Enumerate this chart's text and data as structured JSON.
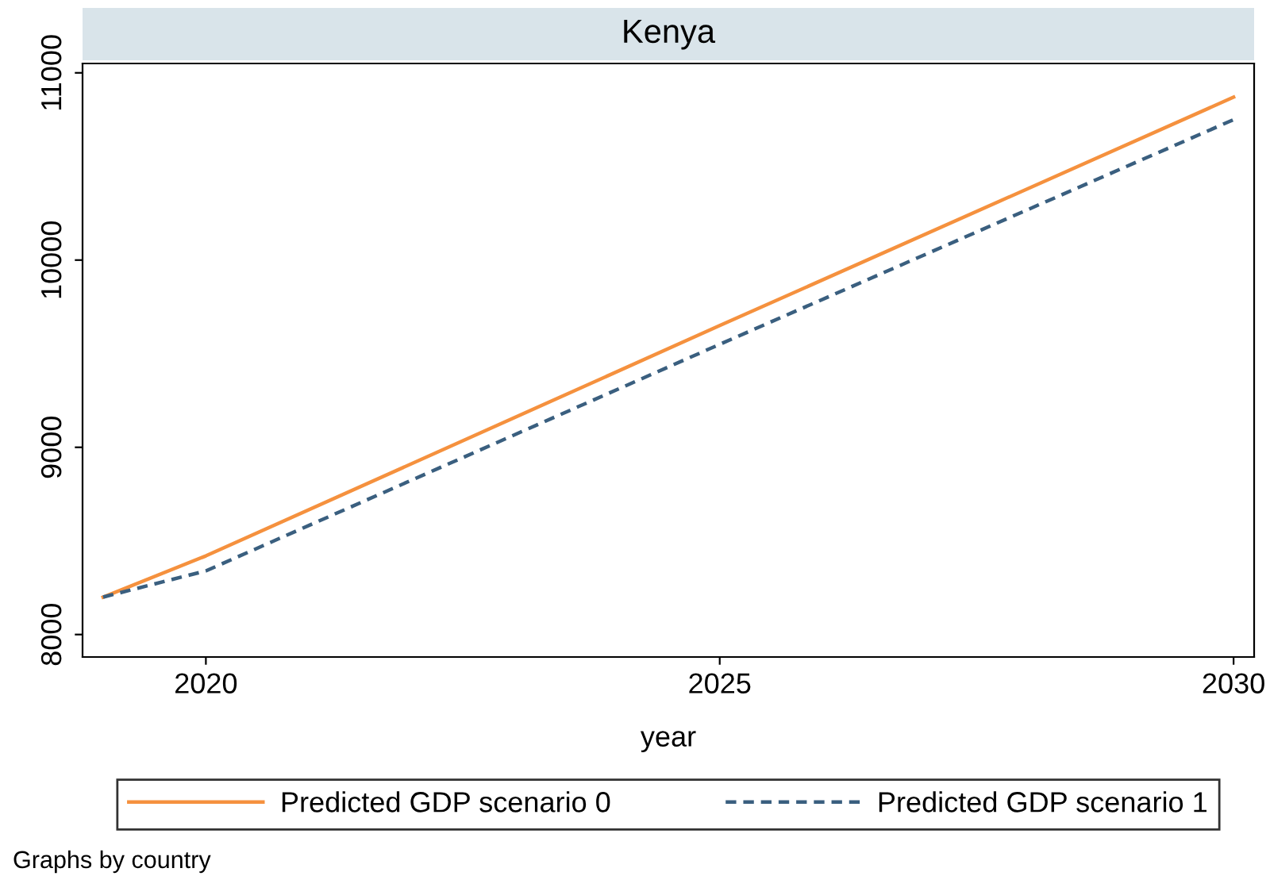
{
  "chart_data": {
    "type": "line",
    "title": "Kenya",
    "xlabel": "year",
    "x": [
      2019,
      2020,
      2025,
      2030
    ],
    "series": [
      {
        "name": "Predicted GDP scenario 0",
        "color": "#f5913e",
        "values": [
          8200,
          8420,
          9650,
          10870
        ],
        "line_style": "solid"
      },
      {
        "name": "Predicted GDP scenario 1",
        "color": "#3a5f7f",
        "values": [
          8200,
          8340,
          9550,
          10750
        ],
        "line_style": "dashed"
      }
    ],
    "xlim": [
      2018.8,
      2030.2
    ],
    "xticks": [
      2020,
      2025,
      2030
    ],
    "ylim": [
      7880,
      11050
    ],
    "yticks": [
      8000,
      9000,
      10000,
      11000
    ],
    "grid": false,
    "legend": "bottom",
    "marker": "none",
    "annotations": [
      "Graphs by country"
    ]
  }
}
